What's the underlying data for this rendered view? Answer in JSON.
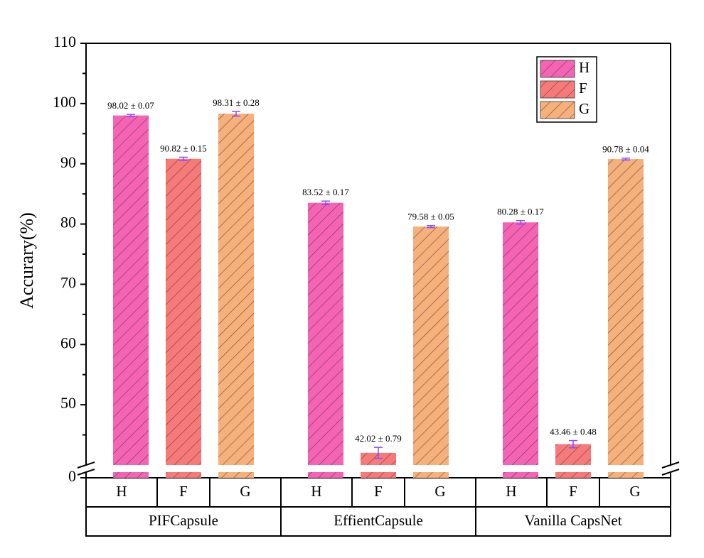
{
  "chart_data": {
    "type": "bar",
    "y_label": "Accurary(%)",
    "groups": [
      "PIFCapsule",
      "EffientCapsule",
      "Vanilla CapsNet"
    ],
    "categories": [
      "H",
      "F",
      "G",
      "H",
      "F",
      "G",
      "H",
      "F",
      "G"
    ],
    "ylim": [
      0,
      110
    ],
    "yticks": [
      0,
      50,
      60,
      70,
      80,
      90,
      100,
      110
    ],
    "yminorticks": [
      45,
      55,
      65,
      75,
      85,
      95,
      105
    ],
    "ybreak": [
      1,
      40
    ],
    "legend": "upper right",
    "error_color": "#8a4cff",
    "series": [
      {
        "name": "H",
        "color": "#f564b4",
        "values": [
          98.02,
          null,
          null,
          83.52,
          null,
          null,
          80.28,
          null,
          null
        ],
        "errors": [
          0.07,
          null,
          null,
          0.17,
          null,
          null,
          0.17,
          null,
          null
        ],
        "value_labels": [
          "98.02 ± 0.07",
          null,
          null,
          "83.52 ± 0.17",
          null,
          null,
          "80.28 ± 0.17",
          null,
          null
        ]
      },
      {
        "name": "F",
        "color": "#f77a7a",
        "values": [
          null,
          90.82,
          null,
          null,
          42.02,
          null,
          null,
          43.46,
          null
        ],
        "errors": [
          null,
          0.15,
          null,
          null,
          0.79,
          null,
          null,
          0.48,
          null
        ],
        "value_labels": [
          null,
          "90.82 ± 0.15",
          null,
          null,
          "42.02 ± 0.79",
          null,
          null,
          "43.46 ± 0.48",
          null
        ]
      },
      {
        "name": "G",
        "color": "#f5b07c",
        "values": [
          null,
          null,
          98.31,
          null,
          null,
          79.58,
          null,
          null,
          90.78
        ],
        "errors": [
          null,
          null,
          0.28,
          null,
          null,
          0.05,
          null,
          null,
          0.04
        ],
        "value_labels": [
          null,
          null,
          "98.31 ± 0.28",
          null,
          null,
          "79.58 ± 0.05",
          null,
          null,
          "90.78 ± 0.04"
        ]
      }
    ]
  }
}
